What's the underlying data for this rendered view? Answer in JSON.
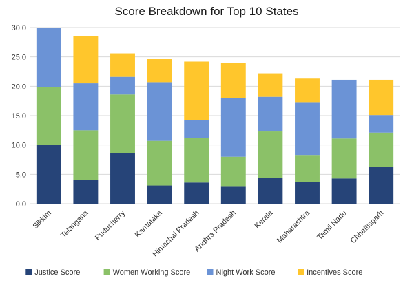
{
  "chart_data": {
    "type": "bar",
    "stacked": true,
    "title": "Score Breakdown for Top 10 States",
    "xlabel": "",
    "ylabel": "",
    "ylim": [
      0,
      30
    ],
    "yticks": [
      "0.0",
      "5.0",
      "10.0",
      "15.0",
      "20.0",
      "25.0",
      "30.0"
    ],
    "grid": true,
    "legend_position": "bottom",
    "categories": [
      "Sikkim",
      "Telangana",
      "Puducherry",
      "Karnataka",
      "Himachal Pradesh",
      "Andhra Pradesh",
      "Kerala",
      "Maharashtra",
      "Tamil Nadu",
      "Chhattisgarh"
    ],
    "series": [
      {
        "name": "Justice Score",
        "color": "#264478",
        "values": [
          10.0,
          4.0,
          8.6,
          3.1,
          3.6,
          3.0,
          4.4,
          3.7,
          4.3,
          6.3
        ]
      },
      {
        "name": "Women Working Score",
        "color": "#8bc168",
        "values": [
          9.9,
          8.5,
          10.0,
          7.6,
          7.6,
          5.0,
          7.9,
          4.6,
          6.8,
          5.8
        ]
      },
      {
        "name": "Night Work Score",
        "color": "#6b93d6",
        "values": [
          10.0,
          8.0,
          3.0,
          10.0,
          3.0,
          10.0,
          5.9,
          9.0,
          10.0,
          3.0
        ]
      },
      {
        "name": "Incentives Score",
        "color": "#ffc62c",
        "values": [
          0.0,
          8.0,
          4.0,
          4.0,
          10.0,
          6.0,
          4.0,
          4.0,
          0.0,
          6.0
        ]
      }
    ]
  }
}
